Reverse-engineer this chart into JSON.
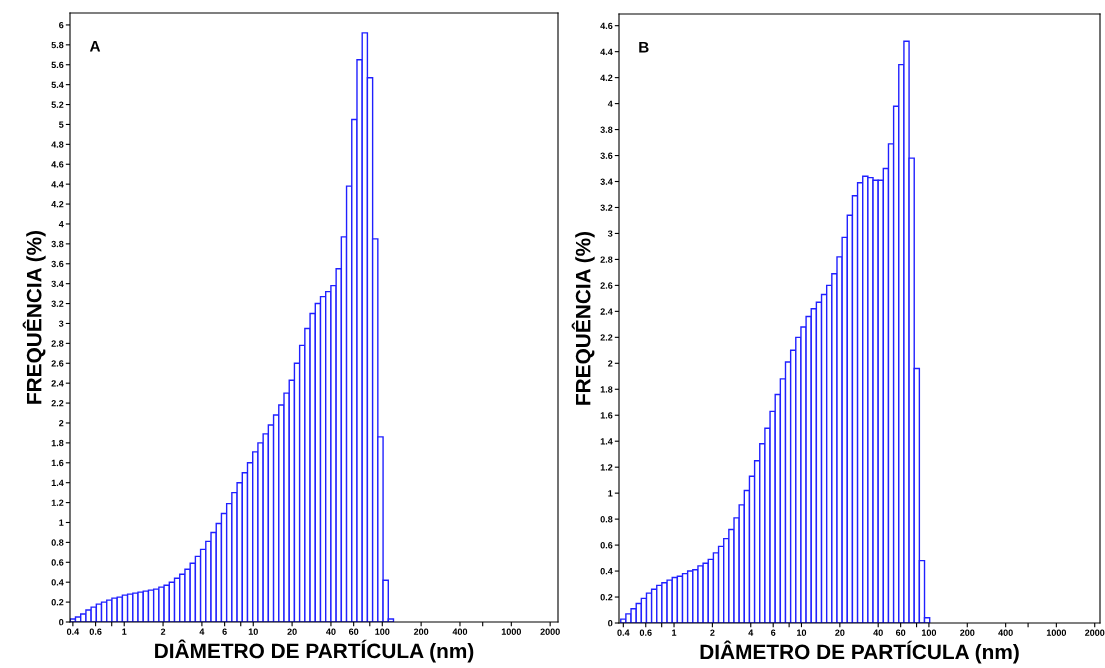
{
  "chart_data": [
    {
      "type": "histogram",
      "xlabel": "DIÂMETRO DE PARTÍCULA (nm)",
      "ylabel": "FREQUÊNCIA (%)",
      "annotations": [
        "A"
      ],
      "log": "x",
      "grid": false,
      "color": "#2020ff",
      "bins": [
        0.382,
        0.419,
        0.46,
        0.505,
        0.554,
        0.608,
        0.667,
        0.732,
        0.803,
        0.882,
        0.968,
        1.062,
        1.166,
        1.279,
        1.404,
        1.541,
        1.691,
        1.856,
        2.037,
        2.236,
        2.454,
        2.693,
        2.956,
        3.244,
        3.56,
        3.907,
        4.288,
        4.706,
        5.165,
        5.668,
        6.221,
        6.827,
        7.493,
        8.223,
        9.025,
        9.905,
        10.87,
        11.93,
        13.09,
        14.37,
        15.77,
        17.31,
        19.0,
        20.85,
        22.88,
        25.11,
        27.56,
        30.25,
        33.2,
        36.43,
        39.98,
        43.88,
        48.16,
        52.85,
        58.01,
        63.66,
        69.87,
        76.68,
        84.16,
        92.36,
        101.4,
        111.3,
        122.1
      ],
      "values": [
        0.03,
        0.05,
        0.08,
        0.12,
        0.15,
        0.18,
        0.2,
        0.22,
        0.24,
        0.25,
        0.27,
        0.28,
        0.29,
        0.3,
        0.31,
        0.32,
        0.33,
        0.35,
        0.37,
        0.4,
        0.44,
        0.48,
        0.53,
        0.59,
        0.66,
        0.73,
        0.81,
        0.9,
        0.99,
        1.09,
        1.19,
        1.3,
        1.4,
        1.5,
        1.6,
        1.71,
        1.8,
        1.89,
        1.98,
        2.08,
        2.18,
        2.3,
        2.43,
        2.6,
        2.78,
        2.95,
        3.1,
        3.2,
        3.27,
        3.32,
        3.38,
        3.55,
        3.87,
        4.38,
        5.05,
        5.65,
        5.92,
        5.47,
        3.85,
        1.86,
        0.42,
        0.03
      ],
      "xlim": [
        0.38,
        2300
      ],
      "xticks": [
        0.4,
        {
          "value": 0.6,
          "label": "0.6"
        },
        {
          "value": 0.8,
          "label": null
        },
        1,
        2,
        4,
        6,
        {
          "value": 8,
          "label": null
        },
        10,
        20,
        40,
        60,
        {
          "value": 80,
          "label": null
        },
        100,
        200,
        400,
        {
          "value": 600,
          "label": null
        },
        1000,
        2000
      ],
      "ylim": [
        0,
        6.12
      ],
      "yticks": [
        0,
        0.2,
        0.4,
        0.6,
        0.8,
        1,
        1.2,
        1.4,
        1.6,
        1.8,
        2,
        2.2,
        2.4,
        2.6,
        2.8,
        3,
        3.2,
        3.4,
        3.6,
        3.8,
        4,
        4.2,
        4.4,
        4.6,
        4.8,
        5,
        5.2,
        5.4,
        5.6,
        5.8,
        6
      ]
    },
    {
      "type": "histogram",
      "xlabel": "DIÂMETRO DE PARTÍCULA (nm)",
      "ylabel": "FREQUÊNCIA (%)",
      "annotations": [
        "B"
      ],
      "log": "x",
      "grid": false,
      "color": "#2020ff",
      "bins": [
        0.382,
        0.419,
        0.46,
        0.505,
        0.554,
        0.608,
        0.667,
        0.732,
        0.803,
        0.882,
        0.968,
        1.062,
        1.166,
        1.279,
        1.404,
        1.541,
        1.691,
        1.856,
        2.037,
        2.236,
        2.454,
        2.693,
        2.956,
        3.244,
        3.56,
        3.907,
        4.288,
        4.706,
        5.165,
        5.668,
        6.221,
        6.827,
        7.493,
        8.223,
        9.025,
        9.905,
        10.87,
        11.93,
        13.09,
        14.37,
        15.77,
        17.31,
        19.0,
        20.85,
        22.88,
        25.11,
        27.56,
        30.25,
        33.2,
        36.43,
        39.98,
        43.88,
        48.16,
        52.85,
        58.01,
        63.66,
        69.87,
        76.68,
        84.16,
        92.36,
        101.4
      ],
      "values": [
        0.03,
        0.07,
        0.11,
        0.15,
        0.19,
        0.23,
        0.26,
        0.29,
        0.31,
        0.33,
        0.35,
        0.36,
        0.38,
        0.4,
        0.41,
        0.44,
        0.46,
        0.49,
        0.54,
        0.59,
        0.65,
        0.72,
        0.81,
        0.91,
        1.02,
        1.13,
        1.25,
        1.38,
        1.5,
        1.63,
        1.76,
        1.88,
        2.01,
        2.1,
        2.2,
        2.28,
        2.36,
        2.42,
        2.47,
        2.53,
        2.6,
        2.69,
        2.82,
        2.97,
        3.14,
        3.29,
        3.39,
        3.44,
        3.43,
        3.41,
        3.41,
        3.5,
        3.69,
        3.98,
        4.3,
        4.48,
        3.58,
        1.96,
        0.48,
        0.04
      ],
      "xlim": [
        0.37,
        2200
      ],
      "xticks": [
        0.4,
        {
          "value": 0.6,
          "label": "0.6"
        },
        {
          "value": 0.8,
          "label": null
        },
        1,
        2,
        4,
        6,
        {
          "value": 8,
          "label": null
        },
        10,
        20,
        40,
        60,
        {
          "value": 80,
          "label": null
        },
        100,
        200,
        400,
        {
          "value": 600,
          "label": null
        },
        1000,
        2000
      ],
      "ylim": [
        0,
        4.69
      ],
      "yticks": [
        0,
        0.2,
        0.4,
        0.6,
        0.8,
        1,
        1.2,
        1.4,
        1.6,
        1.8,
        2,
        2.2,
        2.4,
        2.6,
        2.8,
        3,
        3.2,
        3.4,
        3.6,
        3.8,
        4,
        4.2,
        4.4,
        4.6
      ]
    }
  ]
}
